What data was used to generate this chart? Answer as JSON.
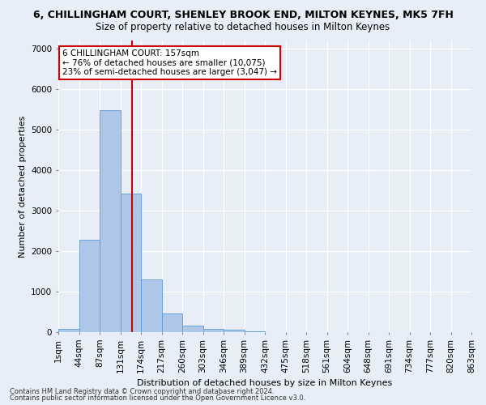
{
  "title": "6, CHILLINGHAM COURT, SHENLEY BROOK END, MILTON KEYNES, MK5 7FH",
  "subtitle": "Size of property relative to detached houses in Milton Keynes",
  "xlabel": "Distribution of detached houses by size in Milton Keynes",
  "ylabel": "Number of detached properties",
  "footnote1": "Contains HM Land Registry data © Crown copyright and database right 2024.",
  "footnote2": "Contains public sector information licensed under the Open Government Licence v3.0.",
  "annotation_line1": "6 CHILLINGHAM COURT: 157sqm",
  "annotation_line2": "← 76% of detached houses are smaller (10,075)",
  "annotation_line3": "23% of semi-detached houses are larger (3,047) →",
  "bar_color": "#aec6e8",
  "bar_edge_color": "#5b9bd5",
  "vline_color": "#cc0000",
  "vline_x": 3.57,
  "bins": [
    "1sqm",
    "44sqm",
    "87sqm",
    "131sqm",
    "174sqm",
    "217sqm",
    "260sqm",
    "303sqm",
    "346sqm",
    "389sqm",
    "432sqm",
    "475sqm",
    "518sqm",
    "561sqm",
    "604sqm",
    "648sqm",
    "691sqm",
    "734sqm",
    "777sqm",
    "820sqm",
    "863sqm"
  ],
  "values": [
    75,
    2280,
    5480,
    3430,
    1310,
    460,
    160,
    90,
    60,
    30,
    5,
    5,
    0,
    0,
    0,
    0,
    0,
    0,
    0,
    0
  ],
  "ylim": [
    0,
    7200
  ],
  "yticks": [
    0,
    1000,
    2000,
    3000,
    4000,
    5000,
    6000,
    7000
  ],
  "bg_color": "#e8eef7",
  "grid_color": "#ffffff",
  "annotation_box_color": "#ffffff",
  "annotation_box_edge": "#cc0000",
  "title_fontsize": 9,
  "subtitle_fontsize": 8.5,
  "axis_label_fontsize": 8,
  "tick_fontsize": 7.5,
  "annotation_fontsize": 7.5,
  "footnote_fontsize": 6
}
